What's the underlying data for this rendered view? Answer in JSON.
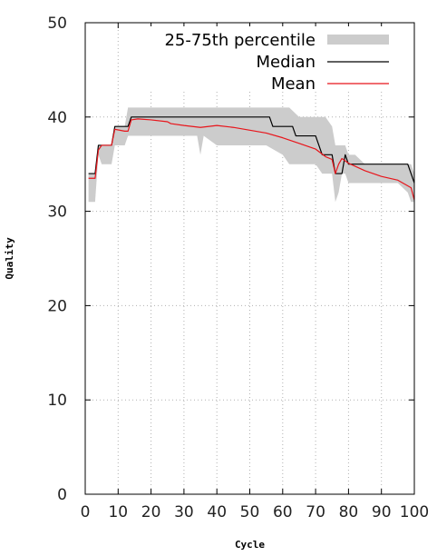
{
  "chart_data": {
    "type": "line",
    "title": "",
    "xlabel": "Cycle",
    "ylabel": "Quality",
    "xlim": [
      0,
      100
    ],
    "ylim": [
      0,
      50
    ],
    "x_ticks": [
      0,
      10,
      20,
      30,
      40,
      50,
      60,
      70,
      80,
      90,
      100
    ],
    "y_ticks": [
      0,
      10,
      20,
      30,
      40,
      50
    ],
    "grid": true,
    "legend_position": "top-right",
    "colors": {
      "band": "#cccccc",
      "median": "#000000",
      "mean": "#e8151b",
      "grid": "#b0b0b0"
    },
    "series": [
      {
        "name": "25-75th percentile",
        "kind": "band",
        "x": [
          1,
          3,
          4,
          5,
          6,
          8,
          9,
          12,
          13,
          15,
          20,
          25,
          30,
          34,
          35,
          36,
          40,
          45,
          50,
          55,
          60,
          62,
          65,
          70,
          72,
          73,
          75,
          76,
          77,
          78,
          79,
          80,
          82,
          85,
          90,
          95,
          98,
          99,
          100
        ],
        "lower": [
          31,
          31,
          36,
          35,
          35,
          35,
          37,
          37,
          38,
          38,
          38,
          38,
          38,
          38,
          36,
          38,
          37,
          37,
          37,
          37,
          36,
          35,
          35,
          35,
          34,
          34,
          34,
          31,
          32,
          34,
          34,
          33,
          33,
          33,
          33,
          33,
          32,
          31,
          31
        ],
        "upper": [
          34,
          34,
          37,
          37,
          37,
          37,
          39,
          39,
          41,
          41,
          41,
          41,
          41,
          41,
          41,
          41,
          41,
          41,
          41,
          41,
          41,
          41,
          40,
          40,
          40,
          40,
          39,
          37,
          37,
          37,
          37,
          36,
          36,
          35,
          35,
          35,
          35,
          35,
          34
        ]
      },
      {
        "name": "Median",
        "x": [
          1,
          3,
          4,
          5,
          6,
          8,
          9,
          12,
          13,
          14,
          56,
          57,
          63,
          64,
          70,
          71,
          72,
          75,
          76,
          78,
          79,
          80,
          98,
          99,
          100
        ],
        "values": [
          34,
          34,
          37,
          37,
          37,
          37,
          39,
          39,
          39,
          40,
          40,
          39,
          39,
          38,
          38,
          37,
          36,
          36,
          34,
          34,
          36,
          35,
          35,
          34,
          33
        ]
      },
      {
        "name": "Mean",
        "x": [
          1,
          3,
          4,
          5,
          8,
          9,
          12,
          13,
          14,
          16,
          20,
          25,
          26,
          30,
          35,
          40,
          45,
          50,
          55,
          60,
          65,
          70,
          73,
          75,
          76,
          77,
          78,
          80,
          85,
          90,
          95,
          99,
          100
        ],
        "values": [
          33.5,
          33.5,
          36.5,
          37,
          37,
          38.7,
          38.5,
          38.5,
          39.7,
          39.8,
          39.7,
          39.5,
          39.3,
          39.1,
          38.9,
          39.1,
          38.9,
          38.6,
          38.3,
          37.8,
          37.2,
          36.6,
          35.8,
          35.5,
          34,
          35,
          35.6,
          35.1,
          34.3,
          33.7,
          33.3,
          32.5,
          31.2
        ]
      }
    ]
  }
}
